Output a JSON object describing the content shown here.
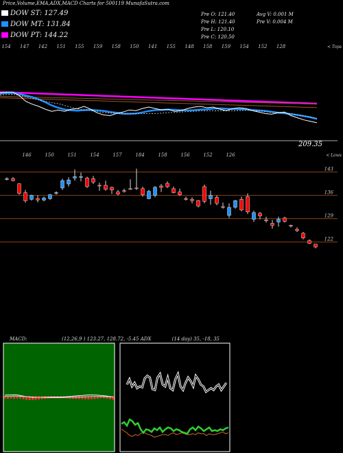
{
  "header": {
    "title": "Price,Volume,EMA,ADX,MACD Charts for 500119 MunafaSutra.com"
  },
  "legend": [
    {
      "label": "DOW ST: 127.49",
      "color": "#ffffff"
    },
    {
      "label": "DOW MT: 131.84",
      "color": "#1e90ff"
    },
    {
      "label": "DOW PT: 144.22",
      "color": "#ff00ff"
    }
  ],
  "stats": {
    "prev_open": "Pre   O: 121.40",
    "prev_high": "Pre   H: 121.40",
    "prev_low": "Pre   L: 120.10",
    "prev_close": "Pre   C: 120.50",
    "avg_volume": "Avg V: 0.001 M",
    "prev_volume": "Pre   V: 0.004  M"
  },
  "chart_data": [
    {
      "type": "line",
      "panel": "ema",
      "top_tick_labels": [
        "154",
        "147",
        "142",
        "151",
        "155",
        "159",
        "158",
        "150",
        "141",
        "155",
        "148",
        "158",
        "159",
        "154",
        "152",
        "128"
      ],
      "top_right_label": "< Tops",
      "bottom_right_label": "209.35",
      "series": [
        {
          "name": "DOW ST",
          "color": "#ffffff"
        },
        {
          "name": "DOW MT",
          "color": "#1e90ff"
        },
        {
          "name": "DOW PT",
          "color": "#ff00ff"
        }
      ],
      "price_line": [
        175,
        176,
        176,
        171,
        163,
        159,
        156,
        152,
        149,
        151,
        149,
        152,
        153,
        156,
        152,
        147,
        144,
        143,
        146,
        148,
        151,
        150,
        153,
        155,
        153,
        151,
        152,
        149,
        150,
        153,
        155,
        156,
        154,
        155,
        152,
        150,
        153,
        154,
        153,
        150,
        148,
        146,
        145,
        147,
        148,
        143,
        140,
        137,
        135,
        133
      ]
    },
    {
      "type": "bar",
      "panel": "candles",
      "top_tick_labels": [
        "146",
        "150",
        "151",
        "154",
        "157",
        "184",
        "158",
        "156",
        "152",
        "126"
      ],
      "top_right_label": "< Lows",
      "price_levels": [
        "143",
        "136",
        "129",
        "122"
      ],
      "candles": [
        {
          "o": 141,
          "h": 141.4,
          "l": 140.5,
          "c": 141.0,
          "col": "#1e90ff"
        },
        {
          "o": 141.0,
          "h": 141.5,
          "l": 140.2,
          "c": 140.4,
          "col": "#ff0000"
        },
        {
          "o": 139.5,
          "h": 139.6,
          "l": 136.2,
          "c": 136.6,
          "col": "#ff0000"
        },
        {
          "o": 136.8,
          "h": 137.6,
          "l": 133.8,
          "c": 134.4,
          "col": "#ff0000"
        },
        {
          "o": 134.8,
          "h": 136.2,
          "l": 134.4,
          "c": 136.0,
          "col": "#1e90ff"
        },
        {
          "o": 134.6,
          "h": 136.0,
          "l": 133.9,
          "c": 135.0,
          "col": "#ff0000"
        },
        {
          "o": 134.6,
          "h": 135.6,
          "l": 134.2,
          "c": 135.2,
          "col": "#1e90ff"
        },
        {
          "o": 135.0,
          "h": 136.4,
          "l": 134.6,
          "c": 136.2,
          "col": "#1e90ff"
        },
        {
          "o": 136.8,
          "h": 137.2,
          "l": 136.2,
          "c": 136.8,
          "col": "#1e90ff"
        },
        {
          "o": 138.2,
          "h": 141.0,
          "l": 137.6,
          "c": 140.4,
          "col": "#1e90ff"
        },
        {
          "o": 139.4,
          "h": 141.4,
          "l": 138.6,
          "c": 140.6,
          "col": "#1e90ff"
        },
        {
          "o": 141.6,
          "h": 143.8,
          "l": 140.4,
          "c": 141.2,
          "col": "#1e90ff"
        },
        {
          "o": 141.6,
          "h": 142.8,
          "l": 140.2,
          "c": 141.6,
          "col": "#1e90ff"
        },
        {
          "o": 141.2,
          "h": 141.6,
          "l": 138.2,
          "c": 138.6,
          "col": "#ff0000"
        },
        {
          "o": 141.0,
          "h": 141.8,
          "l": 139.4,
          "c": 140.0,
          "col": "#ff0000"
        },
        {
          "o": 139.0,
          "h": 139.8,
          "l": 137.4,
          "c": 138.8,
          "col": "#ff0000"
        },
        {
          "o": 139.0,
          "h": 140.4,
          "l": 137.4,
          "c": 137.8,
          "col": "#ff0000"
        },
        {
          "o": 138.4,
          "h": 138.6,
          "l": 136.4,
          "c": 137.6,
          "col": "#ff0000"
        },
        {
          "o": 137.0,
          "h": 137.6,
          "l": 136.0,
          "c": 136.4,
          "col": "#ff0000"
        },
        {
          "o": 137.4,
          "h": 138.0,
          "l": 136.8,
          "c": 137.2,
          "col": "#ff0000"
        },
        {
          "o": 138.0,
          "h": 140.8,
          "l": 137.6,
          "c": 138.0,
          "col": "#ff0000"
        },
        {
          "o": 138.0,
          "h": 144.0,
          "l": 137.6,
          "c": 138.2,
          "col": "#ff0000"
        },
        {
          "o": 138.0,
          "h": 138.6,
          "l": 135.6,
          "c": 136.2,
          "col": "#ff0000"
        },
        {
          "o": 135.0,
          "h": 137.6,
          "l": 134.8,
          "c": 137.2,
          "col": "#1e90ff"
        },
        {
          "o": 136.0,
          "h": 138.8,
          "l": 135.4,
          "c": 138.4,
          "col": "#1e90ff"
        },
        {
          "o": 138.4,
          "h": 139.4,
          "l": 137.0,
          "c": 138.8,
          "col": "#ff0000"
        },
        {
          "o": 139.6,
          "h": 140.2,
          "l": 138.2,
          "c": 138.6,
          "col": "#ff0000"
        },
        {
          "o": 138.0,
          "h": 138.6,
          "l": 136.6,
          "c": 136.8,
          "col": "#ff0000"
        },
        {
          "o": 137.0,
          "h": 138.0,
          "l": 135.8,
          "c": 136.2,
          "col": "#ff0000"
        },
        {
          "o": 135.0,
          "h": 135.6,
          "l": 134.4,
          "c": 135.0,
          "col": "#ff0000"
        },
        {
          "o": 134.8,
          "h": 135.4,
          "l": 133.6,
          "c": 134.4,
          "col": "#ff0000"
        },
        {
          "o": 134.4,
          "h": 134.6,
          "l": 132.4,
          "c": 132.8,
          "col": "#ff0000"
        },
        {
          "o": 138.6,
          "h": 139.2,
          "l": 133.6,
          "c": 134.2,
          "col": "#ff0000"
        },
        {
          "o": 136.0,
          "h": 137.4,
          "l": 133.2,
          "c": 135.0,
          "col": "#1e90ff"
        },
        {
          "o": 135.4,
          "h": 136.0,
          "l": 133.0,
          "c": 133.6,
          "col": "#ff0000"
        },
        {
          "o": 132.6,
          "h": 133.8,
          "l": 132.0,
          "c": 132.4,
          "col": "#ff0000"
        },
        {
          "o": 130.0,
          "h": 133.6,
          "l": 129.2,
          "c": 132.4,
          "col": "#1e90ff"
        },
        {
          "o": 132.4,
          "h": 134.6,
          "l": 132.0,
          "c": 134.4,
          "col": "#1e90ff"
        },
        {
          "o": 134.8,
          "h": 135.6,
          "l": 131.2,
          "c": 131.6,
          "col": "#ff0000"
        },
        {
          "o": 135.6,
          "h": 136.6,
          "l": 130.4,
          "c": 131.0,
          "col": "#ff0000"
        },
        {
          "o": 128.8,
          "h": 131.4,
          "l": 128.0,
          "c": 130.8,
          "col": "#1e90ff"
        },
        {
          "o": 130.6,
          "h": 131.0,
          "l": 128.8,
          "c": 129.8,
          "col": "#ff0000"
        },
        {
          "o": 128.6,
          "h": 129.6,
          "l": 127.8,
          "c": 128.4,
          "col": "#ff0000"
        },
        {
          "o": 127.6,
          "h": 128.6,
          "l": 126.0,
          "c": 127.0,
          "col": "#ff0000"
        },
        {
          "o": 128.0,
          "h": 129.6,
          "l": 126.6,
          "c": 128.8,
          "col": "#1e90ff"
        },
        {
          "o": 129.2,
          "h": 129.6,
          "l": 127.8,
          "c": 128.2,
          "col": "#ff0000"
        },
        {
          "o": 127.0,
          "h": 127.2,
          "l": 126.4,
          "c": 126.8,
          "col": "#ff0000"
        },
        {
          "o": 125.8,
          "h": 126.4,
          "l": 125.0,
          "c": 125.4,
          "col": "#ff0000"
        },
        {
          "o": 124.6,
          "h": 125.0,
          "l": 122.8,
          "c": 123.2,
          "col": "#ff0000"
        },
        {
          "o": 122.4,
          "h": 122.8,
          "l": 121.4,
          "c": 121.6,
          "col": "#ff0000"
        },
        {
          "o": 121.4,
          "h": 121.4,
          "l": 120.1,
          "c": 120.5,
          "col": "#ff0000"
        }
      ]
    },
    {
      "type": "bar",
      "panel": "macd",
      "label": "MACD",
      "values_text": "(12,26,9 ) 123.27,  128.72,  -5.45",
      "macd_line": [
        -2.0,
        -1.6,
        -1.6,
        -1.4,
        -1.6,
        -2.6,
        -3.4,
        -4.4,
        -5.0,
        -5.5,
        -5.5,
        -5.5,
        -5.4,
        -5.3,
        -5.2,
        -5.0,
        -5.0,
        -5.0,
        -5.0,
        -4.8,
        -4.5,
        -4.0,
        -3.6,
        -3.2,
        -2.8,
        -2.4,
        -2.0,
        -1.6,
        -1.6,
        -1.7,
        -2.0,
        -2.5,
        -2.9,
        -3.4,
        -4.2,
        -5.0
      ],
      "signal_line": [
        -2.4,
        -2.2,
        -2.0,
        -1.9,
        -1.9,
        -2.1,
        -2.4,
        -2.8,
        -3.2,
        -3.6,
        -4.0,
        -4.3,
        -4.5,
        -4.7,
        -4.8,
        -4.9,
        -4.9,
        -4.9,
        -4.9,
        -4.8,
        -4.7,
        -4.5,
        -4.3,
        -4.0,
        -3.7,
        -3.4,
        -3.1,
        -2.8,
        -2.6,
        -2.5,
        -2.5,
        -2.6,
        -2.7,
        -2.9,
        -3.2,
        -3.6
      ]
    },
    {
      "type": "line",
      "panel": "adx",
      "label": "ADX",
      "values_text": "(14  day) 35, -18,  35",
      "di_plus": [
        28,
        30,
        26,
        33,
        31,
        27,
        29,
        22,
        18,
        22,
        21,
        19,
        23,
        21,
        24,
        19,
        22,
        24,
        23,
        20,
        22,
        21,
        19,
        18,
        17,
        22,
        24,
        21,
        25,
        23,
        20,
        22,
        24,
        20,
        21,
        20,
        22,
        21,
        23,
        24
      ],
      "di_minus": [
        22,
        20,
        18,
        15,
        14,
        16,
        15,
        17,
        19,
        17,
        16,
        15,
        13,
        14,
        15,
        16,
        16,
        15,
        17,
        18,
        16,
        17,
        18,
        17,
        16,
        16,
        17,
        16,
        18,
        17,
        17,
        15,
        17,
        16,
        16,
        17,
        18,
        19,
        17,
        18
      ],
      "adx_line": [
        72,
        78,
        70,
        74,
        68,
        70,
        69,
        79,
        82,
        80,
        67,
        66,
        80,
        84,
        72,
        70,
        80,
        68,
        66,
        78,
        84,
        70,
        66,
        74,
        80,
        76,
        70,
        82,
        78,
        72,
        70,
        64,
        66,
        68,
        66,
        70,
        72,
        66,
        70,
        74
      ]
    }
  ]
}
